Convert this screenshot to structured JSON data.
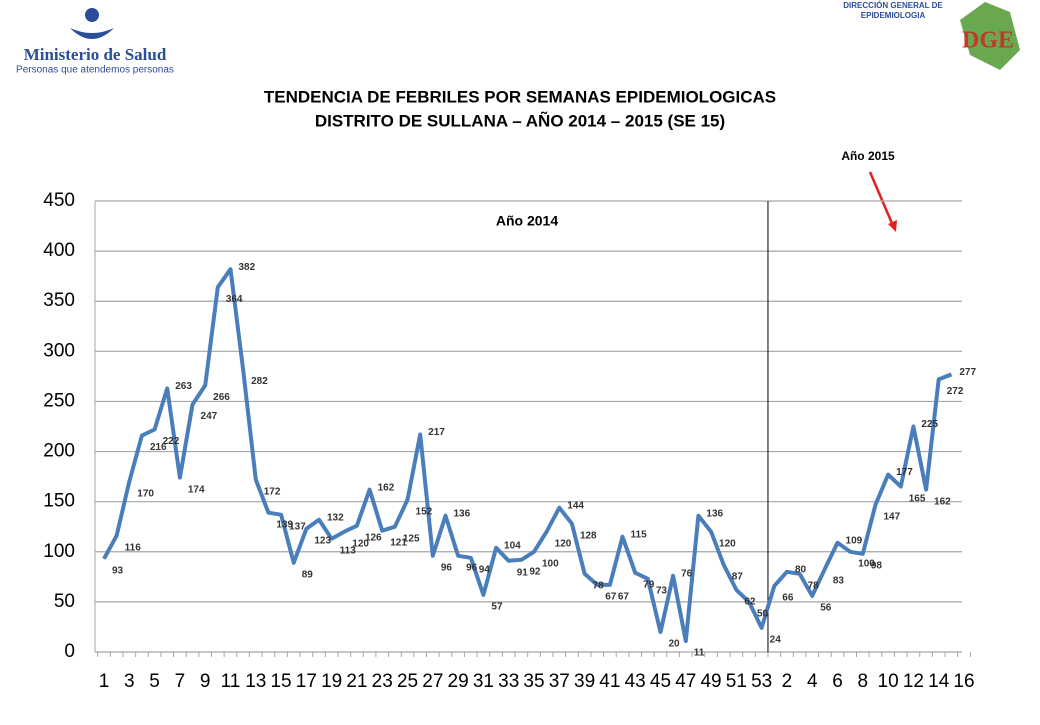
{
  "header": {
    "ministry": "Ministerio de Salud",
    "slogan": "Personas que atendemos personas",
    "office": [
      "DIRECCIÓN GENERAL DE",
      "EPIDEMIOLOGIA"
    ],
    "logo": "DGE"
  },
  "chart_data": {
    "type": "line",
    "title": [
      "TENDENCIA DE FEBRILES POR SEMANAS EPIDEMIOLOGICAS",
      "DISTRITO DE SULLANA – AÑO 2014 – 2015 (SE 15)"
    ],
    "annotations": [
      "Año 2014",
      "Año 2015"
    ],
    "categories": [
      "1",
      null,
      "3",
      null,
      "5",
      null,
      "7",
      null,
      "9",
      null,
      "11",
      null,
      "13",
      null,
      "15",
      null,
      "17",
      null,
      "19",
      null,
      "21",
      null,
      "23",
      null,
      "25",
      null,
      "27",
      null,
      "29",
      null,
      "31",
      null,
      "33",
      null,
      "35",
      null,
      "37",
      null,
      "39",
      null,
      "41",
      null,
      "43",
      null,
      "45",
      null,
      "47",
      null,
      "49",
      null,
      "51",
      null,
      "53",
      null,
      "2",
      null,
      "4",
      null,
      "6",
      null,
      "8",
      null,
      "10",
      null,
      "12",
      null,
      "14",
      null,
      "16"
    ],
    "series": [
      {
        "name": null,
        "color": "#4a7ebb",
        "values": [
          93,
          116,
          170,
          216,
          222,
          263,
          174,
          247,
          266,
          364,
          382,
          282,
          172,
          139,
          137,
          89,
          123,
          132,
          113,
          120,
          126,
          162,
          121,
          125,
          152,
          217,
          96,
          136,
          96,
          94,
          57,
          104,
          91,
          92,
          100,
          120,
          144,
          128,
          78,
          67,
          67,
          115,
          79,
          73,
          20,
          76,
          11,
          136,
          120,
          87,
          62,
          50,
          24,
          66,
          80,
          78,
          56,
          83,
          109,
          100,
          98,
          147,
          177,
          165,
          225,
          162,
          272,
          277,
          null
        ]
      }
    ],
    "ylim": [
      0,
      450
    ],
    "yticks": [
      0,
      50,
      100,
      150,
      200,
      250,
      300,
      350,
      400,
      450
    ],
    "grid": true
  }
}
